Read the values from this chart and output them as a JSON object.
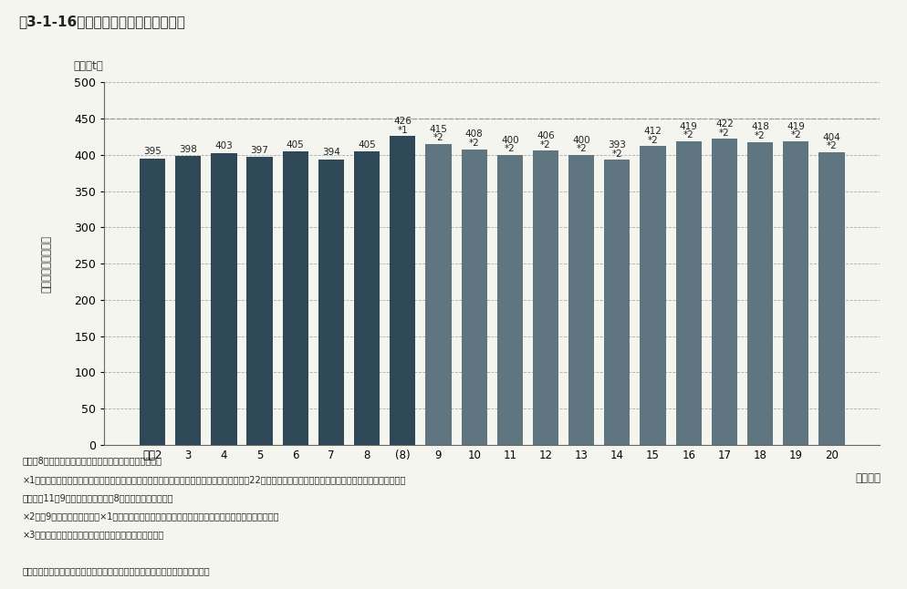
{
  "title": "図3-1-16　産業廃棄物の排出量の推移",
  "ylabel_rotated": "産業廃棄物の排出量",
  "unit_label": "（百万t）",
  "categories": [
    "平成2",
    "3",
    "4",
    "5",
    "6",
    "7",
    "8",
    "(8)",
    "9",
    "10",
    "11",
    "12",
    "13",
    "14",
    "15",
    "16",
    "17",
    "18",
    "19",
    "20"
  ],
  "values": [
    395,
    398,
    403,
    397,
    405,
    394,
    405,
    426,
    415,
    408,
    400,
    406,
    400,
    393,
    412,
    419,
    422,
    418,
    419,
    404
  ],
  "bar_labels_main": [
    "395",
    "398",
    "403",
    "397",
    "405",
    "394",
    "405",
    "426",
    "415",
    "408",
    "400",
    "406",
    "400",
    "393",
    "412",
    "419",
    "422",
    "418",
    "419",
    "404"
  ],
  "bar_labels_sub": [
    "",
    "",
    "",
    "",
    "",
    "",
    "",
    "*1",
    "*2",
    "*2",
    "*2",
    "*2",
    "*2",
    "*2",
    "*2",
    "*2",
    "*2",
    "*2",
    "*2",
    "*2"
  ],
  "bar_colors": [
    "#2e4857",
    "#2e4857",
    "#2e4857",
    "#2e4857",
    "#2e4857",
    "#2e4857",
    "#2e4857",
    "#2e4857",
    "#5f7580",
    "#5f7580",
    "#5f7580",
    "#5f7580",
    "#5f7580",
    "#5f7580",
    "#5f7580",
    "#5f7580",
    "#5f7580",
    "#5f7580",
    "#5f7580",
    "#5f7580"
  ],
  "ylim": [
    0,
    500
  ],
  "yticks": [
    0,
    50,
    100,
    150,
    200,
    250,
    300,
    350,
    400,
    450,
    500
  ],
  "dashed_line_y": 450,
  "xlabel_suffix": "（年度）",
  "note1": "注：平8年度から排出量の推計方法を一部変更している。",
  "note2": "×1：ダイオキシン対策基本方針（ダイオキシン対策関係閣僚会議決定）に基づき、政府が平22年度を目標年度として設定した「廃棄物の減量化の目標量」",
  "note2b": "　　（平11年9月設定）における平8年度の排出量を示す。",
  "note3": "×2：平9年度以降の排出量は×1において排出量を算出した際と同じ前提条件を用いて算出している。",
  "note4": "×3：対象は廃棄物処理法に規定する産業廃棄物１９種類",
  "source": "資料：「産業廃棄物排出・処理状況調査報告書」（平成２年）より環境省作成",
  "bg_color": "#f5f5f0",
  "plot_bg": "#f5f5f0"
}
